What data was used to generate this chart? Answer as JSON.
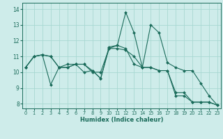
{
  "xlabel": "Humidex (Indice chaleur)",
  "xlim": [
    -0.4,
    23.4
  ],
  "ylim": [
    7.7,
    14.4
  ],
  "yticks": [
    8,
    9,
    10,
    11,
    12,
    13,
    14
  ],
  "xticks": [
    0,
    1,
    2,
    3,
    4,
    5,
    6,
    7,
    8,
    9,
    10,
    11,
    12,
    13,
    14,
    15,
    16,
    17,
    18,
    19,
    20,
    21,
    22,
    23
  ],
  "bg_color": "#ceecea",
  "grid_color": "#a8d8d2",
  "line_color": "#1a6b5a",
  "line1_y": [
    10.3,
    11.0,
    11.1,
    11.0,
    10.3,
    10.5,
    10.5,
    10.5,
    10.1,
    9.6,
    11.6,
    11.7,
    13.8,
    12.5,
    10.3,
    13.0,
    12.5,
    10.6,
    10.3,
    10.1,
    10.1,
    9.3,
    8.5,
    7.9
  ],
  "line2_y": [
    10.3,
    11.0,
    11.1,
    9.2,
    10.3,
    10.3,
    10.5,
    10.0,
    10.1,
    9.6,
    11.5,
    11.7,
    11.5,
    10.5,
    10.3,
    10.3,
    10.1,
    10.1,
    8.5,
    8.5,
    8.1,
    8.1,
    8.1,
    7.9
  ],
  "line3_y": [
    10.3,
    11.0,
    11.1,
    11.0,
    10.3,
    10.3,
    10.5,
    10.5,
    10.0,
    10.0,
    11.5,
    11.5,
    11.4,
    11.0,
    10.3,
    10.3,
    10.1,
    10.1,
    8.7,
    8.7,
    8.1,
    8.1,
    8.1,
    7.9
  ]
}
